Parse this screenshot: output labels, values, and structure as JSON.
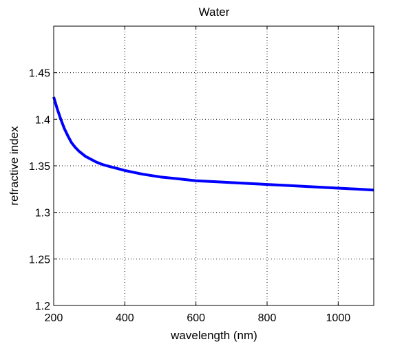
{
  "chart_data": {
    "type": "line",
    "title": "Water",
    "xlabel": "wavelength (nm)",
    "ylabel": "refractive index",
    "xlim": [
      200,
      1100
    ],
    "ylim": [
      1.2,
      1.5
    ],
    "grid": true,
    "x_ticks": [
      200,
      400,
      600,
      800,
      1000
    ],
    "x_tick_labels": [
      "200",
      "400",
      "600",
      "800",
      "1000"
    ],
    "y_ticks": [
      1.2,
      1.25,
      1.3,
      1.35,
      1.4,
      1.45
    ],
    "y_tick_labels": [
      "1.2",
      "1.25",
      "1.3",
      "1.35",
      "1.4",
      "1.45"
    ],
    "line_color": "#0000ff",
    "series": [
      {
        "x": [
          200,
          210,
          220,
          230,
          240,
          250,
          260,
          270,
          280,
          290,
          300,
          320,
          340,
          360,
          380,
          400,
          450,
          500,
          550,
          600,
          650,
          700,
          750,
          800,
          850,
          900,
          950,
          1000,
          1050,
          1100
        ],
        "values": [
          1.424,
          1.411,
          1.4,
          1.39,
          1.382,
          1.375,
          1.37,
          1.366,
          1.363,
          1.36,
          1.358,
          1.354,
          1.351,
          1.349,
          1.347,
          1.345,
          1.341,
          1.338,
          1.336,
          1.334,
          1.333,
          1.332,
          1.331,
          1.33,
          1.329,
          1.328,
          1.327,
          1.326,
          1.325,
          1.324
        ]
      }
    ]
  }
}
